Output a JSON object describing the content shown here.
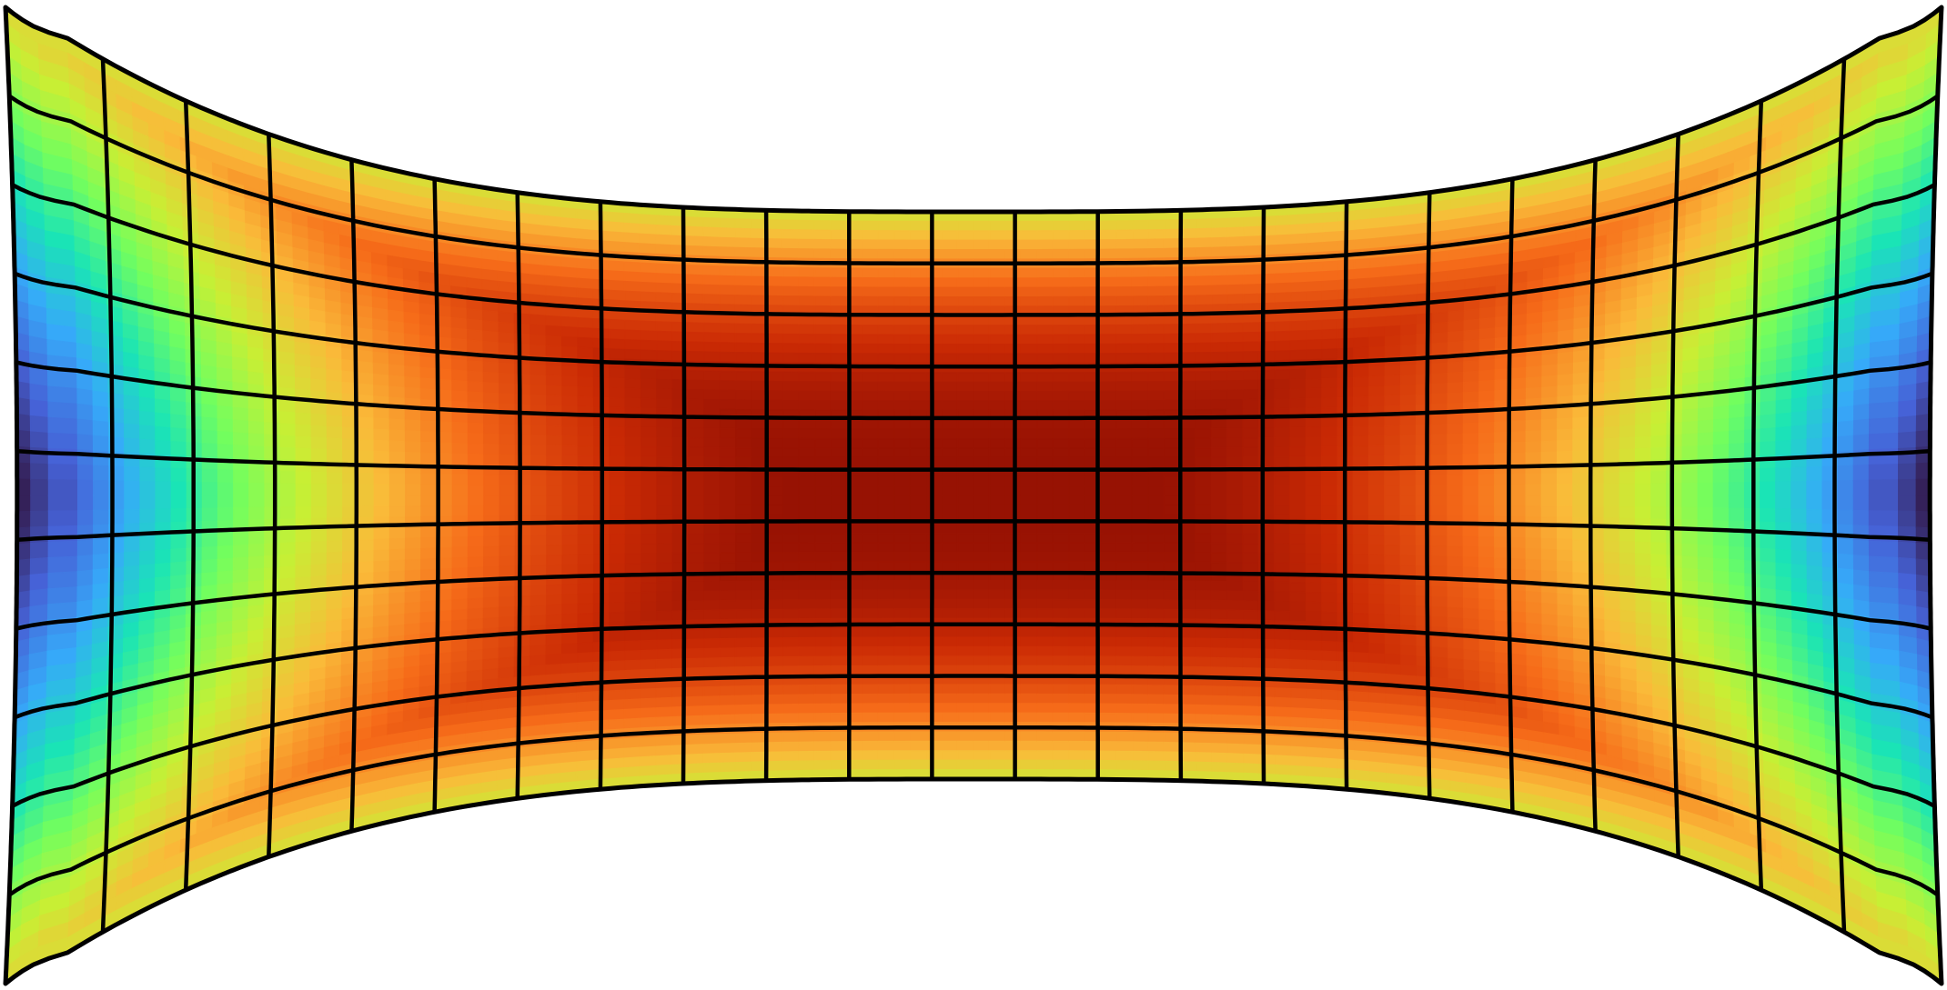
{
  "figure": {
    "type": "deformed-mesh-contour",
    "mesh": {
      "columns": 23,
      "rows": 11
    },
    "colormap": [
      "#30123b",
      "#4662d7",
      "#36aaf9",
      "#1ae4b6",
      "#72fe5e",
      "#c8ef34",
      "#faba39",
      "#f66b19",
      "#ca2a04",
      "#7a0403"
    ],
    "grid_line_color": "#000000",
    "background_color": "#ffffff"
  }
}
